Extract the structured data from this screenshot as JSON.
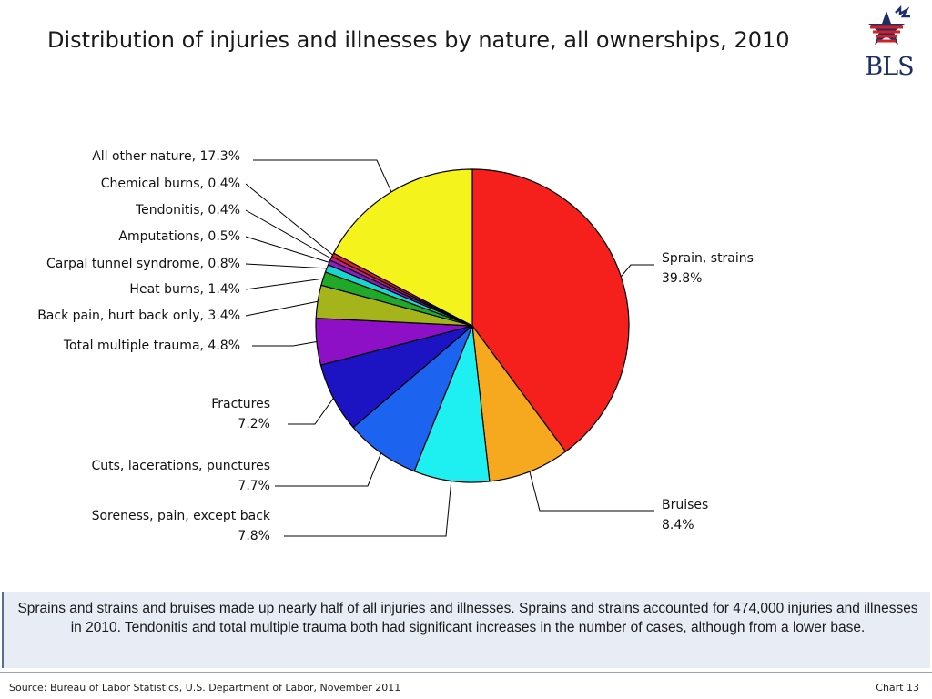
{
  "header": {
    "title": "Distribution of injuries and illnesses by nature, all ownerships, 2010",
    "logo_text": "BLS"
  },
  "chart_data": {
    "type": "pie",
    "slices": [
      {
        "label": "Sprain, strains",
        "value": 39.8,
        "value_label": "39.8%",
        "color": "#f5201c"
      },
      {
        "label": "Bruises",
        "value": 8.4,
        "value_label": "8.4%",
        "color": "#f6a81e"
      },
      {
        "label": "Soreness, pain, except back",
        "value": 7.8,
        "value_label": "7.8%",
        "color": "#1ef0f2"
      },
      {
        "label": "Cuts, lacerations, punctures",
        "value": 7.7,
        "value_label": "7.7%",
        "color": "#1c64ef"
      },
      {
        "label": "Fractures",
        "value": 7.2,
        "value_label": "7.2%",
        "color": "#1c14c2"
      },
      {
        "label": "Total multiple trauma, 4.8%",
        "value": 4.8,
        "color": "#8d10c6"
      },
      {
        "label": "Back pain, hurt back only, 3.4%",
        "value": 3.4,
        "color": "#a4b41a"
      },
      {
        "label": "Heat burns, 1.4%",
        "value": 1.4,
        "color": "#20a828"
      },
      {
        "label": "Carpal tunnel syndrome, 0.8%",
        "value": 0.8,
        "color": "#18d6d0"
      },
      {
        "label": "Amputations, 0.5%",
        "value": 0.5,
        "color": "#8a1ec4"
      },
      {
        "label": "Tendonitis, 0.4%",
        "value": 0.4,
        "color": "#c61c8c"
      },
      {
        "label": "Chemical burns, 0.4%",
        "value": 0.4,
        "color": "#e61e22"
      },
      {
        "label": "All other nature, 17.3%",
        "value": 17.3,
        "color": "#f4f41c"
      }
    ]
  },
  "note": "Sprains and strains and bruises made up nearly half of all injuries and illnesses. Sprains and strains accounted for 474,000 injuries and illnesses in 2010.  Tendonitis and total multiple trauma both had significant increases in the number of cases, although from a lower base.",
  "footer": {
    "source": "Source: Bureau of Labor Statistics, U.S. Department of Labor, November 2011",
    "chart_number": "Chart 13"
  }
}
